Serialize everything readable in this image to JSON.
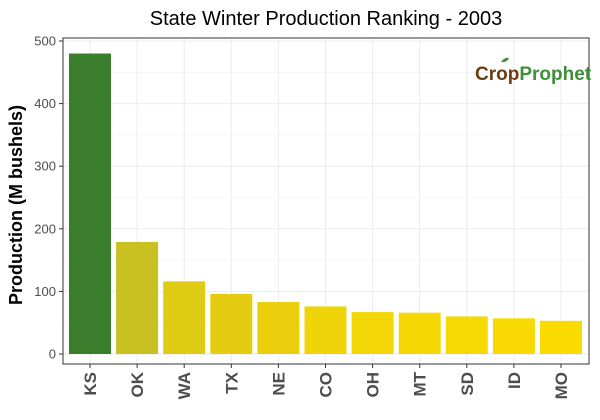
{
  "chart_data": {
    "type": "bar",
    "title": "State Winter  Production Ranking - 2003",
    "xlabel": "",
    "ylabel": "Production (M bushels)",
    "ylim": [
      0,
      500
    ],
    "yticks": [
      0,
      100,
      200,
      300,
      400,
      500
    ],
    "categories": [
      "KS",
      "OK",
      "WA",
      "TX",
      "NE",
      "CO",
      "OH",
      "MT",
      "SD",
      "ID",
      "MO"
    ],
    "values": [
      480,
      179,
      116,
      96,
      83,
      76,
      67,
      66,
      60,
      57,
      53
    ],
    "bar_colors": [
      "#3a7d2c",
      "#c9c021",
      "#dfca14",
      "#e6cc10",
      "#ead00c",
      "#efd40a",
      "#f2d607",
      "#f4d705",
      "#f6d903",
      "#f8da02",
      "#fadb00"
    ],
    "grid": true,
    "legend": "none"
  },
  "watermark": {
    "part1": "Cr",
    "part2": "o",
    "part3": "p",
    "part4": "Prophet",
    "color_dark": "#6b3d12",
    "color_green": "#3f8f3a"
  },
  "colors": {
    "panel_border": "#333333",
    "grid": "#ebebeb"
  }
}
